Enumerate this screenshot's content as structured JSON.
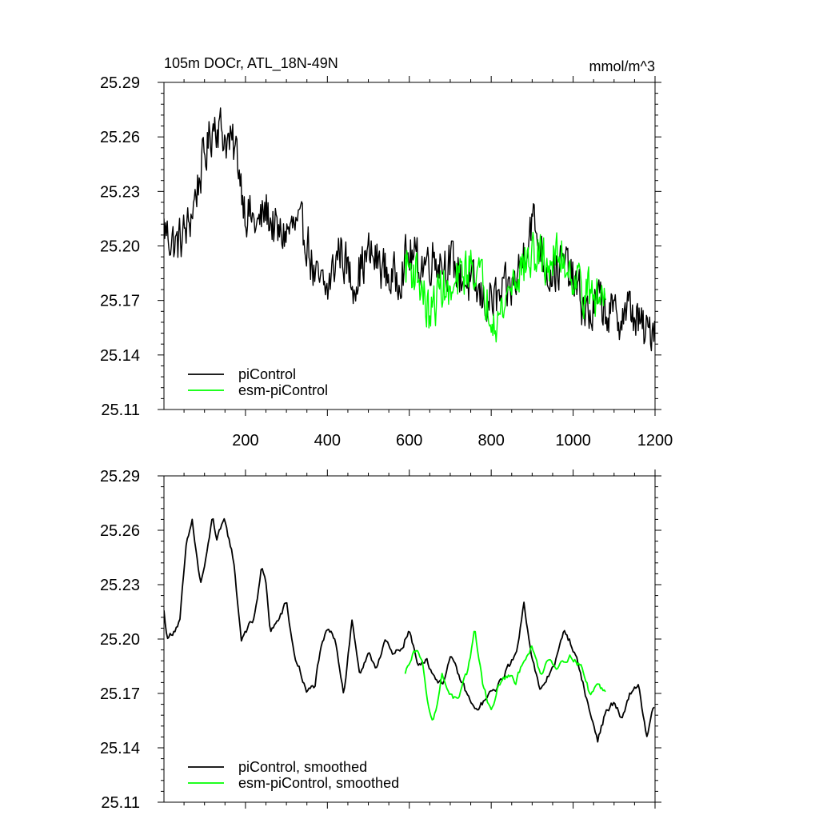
{
  "chart_data": [
    {
      "type": "line",
      "title": "105m DOCr, ATL_18N-49N",
      "units": "mmol/m^3",
      "xlabel": "",
      "ylabel": "",
      "xlim": [
        1,
        1200
      ],
      "ylim": [
        25.11,
        25.29
      ],
      "xticks": [
        200,
        400,
        600,
        800,
        1000,
        1200
      ],
      "yticks": [
        25.11,
        25.14,
        25.17,
        25.2,
        25.23,
        25.26,
        25.29
      ],
      "ytick_labels": [
        "25.11",
        "25.14",
        "25.17",
        "25.20",
        "25.23",
        "25.26",
        "25.29"
      ],
      "xtick_labels": [
        "200",
        "400",
        "600",
        "800",
        "1000",
        "1200"
      ],
      "legend_position": "bottom-left",
      "grid": false,
      "series": [
        {
          "name": "piControl",
          "color": "#000000",
          "x": [
            1,
            30,
            60,
            90,
            125,
            150,
            180,
            200,
            230,
            250,
            280,
            320,
            350,
            370,
            400,
            430,
            460,
            500,
            530,
            560,
            600,
            630,
            660,
            700,
            740,
            780,
            820,
            860,
            900,
            940,
            980,
            1000,
            1040,
            1060,
            1100,
            1140,
            1180,
            1200
          ],
          "y": [
            25.21,
            25.2,
            25.21,
            25.24,
            25.27,
            25.26,
            25.25,
            25.22,
            25.21,
            25.22,
            25.205,
            25.21,
            25.205,
            25.18,
            25.175,
            25.2,
            25.18,
            25.195,
            25.19,
            25.18,
            25.195,
            25.19,
            25.195,
            25.19,
            25.18,
            25.17,
            25.17,
            25.18,
            25.215,
            25.185,
            25.19,
            25.18,
            25.16,
            25.17,
            25.16,
            25.165,
            25.15,
            25.16
          ]
        },
        {
          "name": "esm-piControl",
          "color": "#00ff00",
          "x": [
            590,
            620,
            650,
            680,
            700,
            730,
            760,
            790,
            820,
            850,
            880,
            910,
            940,
            970,
            1000,
            1030,
            1060,
            1080
          ],
          "y": [
            25.19,
            25.185,
            25.16,
            25.18,
            25.17,
            25.185,
            25.19,
            25.17,
            25.16,
            25.18,
            25.19,
            25.195,
            25.19,
            25.195,
            25.185,
            25.175,
            25.17,
            25.175
          ]
        }
      ]
    },
    {
      "type": "line",
      "title": "",
      "xlabel": "",
      "ylabel": "",
      "xlim": [
        1,
        1200
      ],
      "ylim": [
        25.11,
        25.29
      ],
      "yticks": [
        25.11,
        25.14,
        25.17,
        25.2,
        25.23,
        25.26,
        25.29
      ],
      "ytick_labels": [
        "25.11",
        "25.14",
        "25.17",
        "25.20",
        "25.23",
        "25.26",
        "25.29"
      ],
      "legend_position": "bottom-left",
      "grid": false,
      "series": [
        {
          "name": "piControl, smoothed",
          "color": "#000000",
          "x": [
            1,
            10,
            40,
            55,
            70,
            90,
            105,
            120,
            130,
            150,
            170,
            190,
            200,
            220,
            240,
            250,
            260,
            280,
            300,
            320,
            330,
            350,
            370,
            380,
            400,
            420,
            440,
            460,
            480,
            500,
            520,
            540,
            560,
            580,
            600,
            620,
            640,
            660,
            680,
            700,
            720,
            740,
            760,
            780,
            800,
            820,
            840,
            860,
            880,
            900,
            920,
            940,
            960,
            980,
            1000,
            1020,
            1040,
            1060,
            1080,
            1100,
            1120,
            1140,
            1160,
            1180,
            1200
          ],
          "y": [
            25.215,
            25.2,
            25.21,
            25.25,
            25.265,
            25.23,
            25.245,
            25.268,
            25.255,
            25.265,
            25.245,
            25.2,
            25.205,
            25.21,
            25.24,
            25.23,
            25.205,
            25.21,
            25.22,
            25.19,
            25.185,
            25.17,
            25.175,
            25.19,
            25.205,
            25.2,
            25.17,
            25.21,
            25.18,
            25.19,
            25.185,
            25.2,
            25.19,
            25.195,
            25.205,
            25.185,
            25.19,
            25.18,
            25.175,
            25.19,
            25.18,
            25.17,
            25.16,
            25.165,
            25.17,
            25.175,
            25.185,
            25.19,
            25.22,
            25.19,
            25.17,
            25.18,
            25.19,
            25.205,
            25.195,
            25.18,
            25.16,
            25.145,
            25.16,
            25.165,
            25.155,
            25.17,
            25.175,
            25.145,
            25.165
          ]
        },
        {
          "name": "esm-piControl, smoothed",
          "color": "#00ff00",
          "x": [
            590,
            610,
            630,
            650,
            660,
            680,
            700,
            720,
            740,
            760,
            780,
            800,
            820,
            840,
            860,
            880,
            900,
            920,
            940,
            960,
            980,
            1000,
            1020,
            1040,
            1060,
            1080
          ],
          "y": [
            25.18,
            25.195,
            25.19,
            25.16,
            25.155,
            25.18,
            25.17,
            25.165,
            25.18,
            25.205,
            25.175,
            25.16,
            25.175,
            25.18,
            25.175,
            25.19,
            25.195,
            25.18,
            25.19,
            25.185,
            25.19,
            25.19,
            25.185,
            25.17,
            25.175,
            25.17
          ]
        }
      ]
    }
  ]
}
